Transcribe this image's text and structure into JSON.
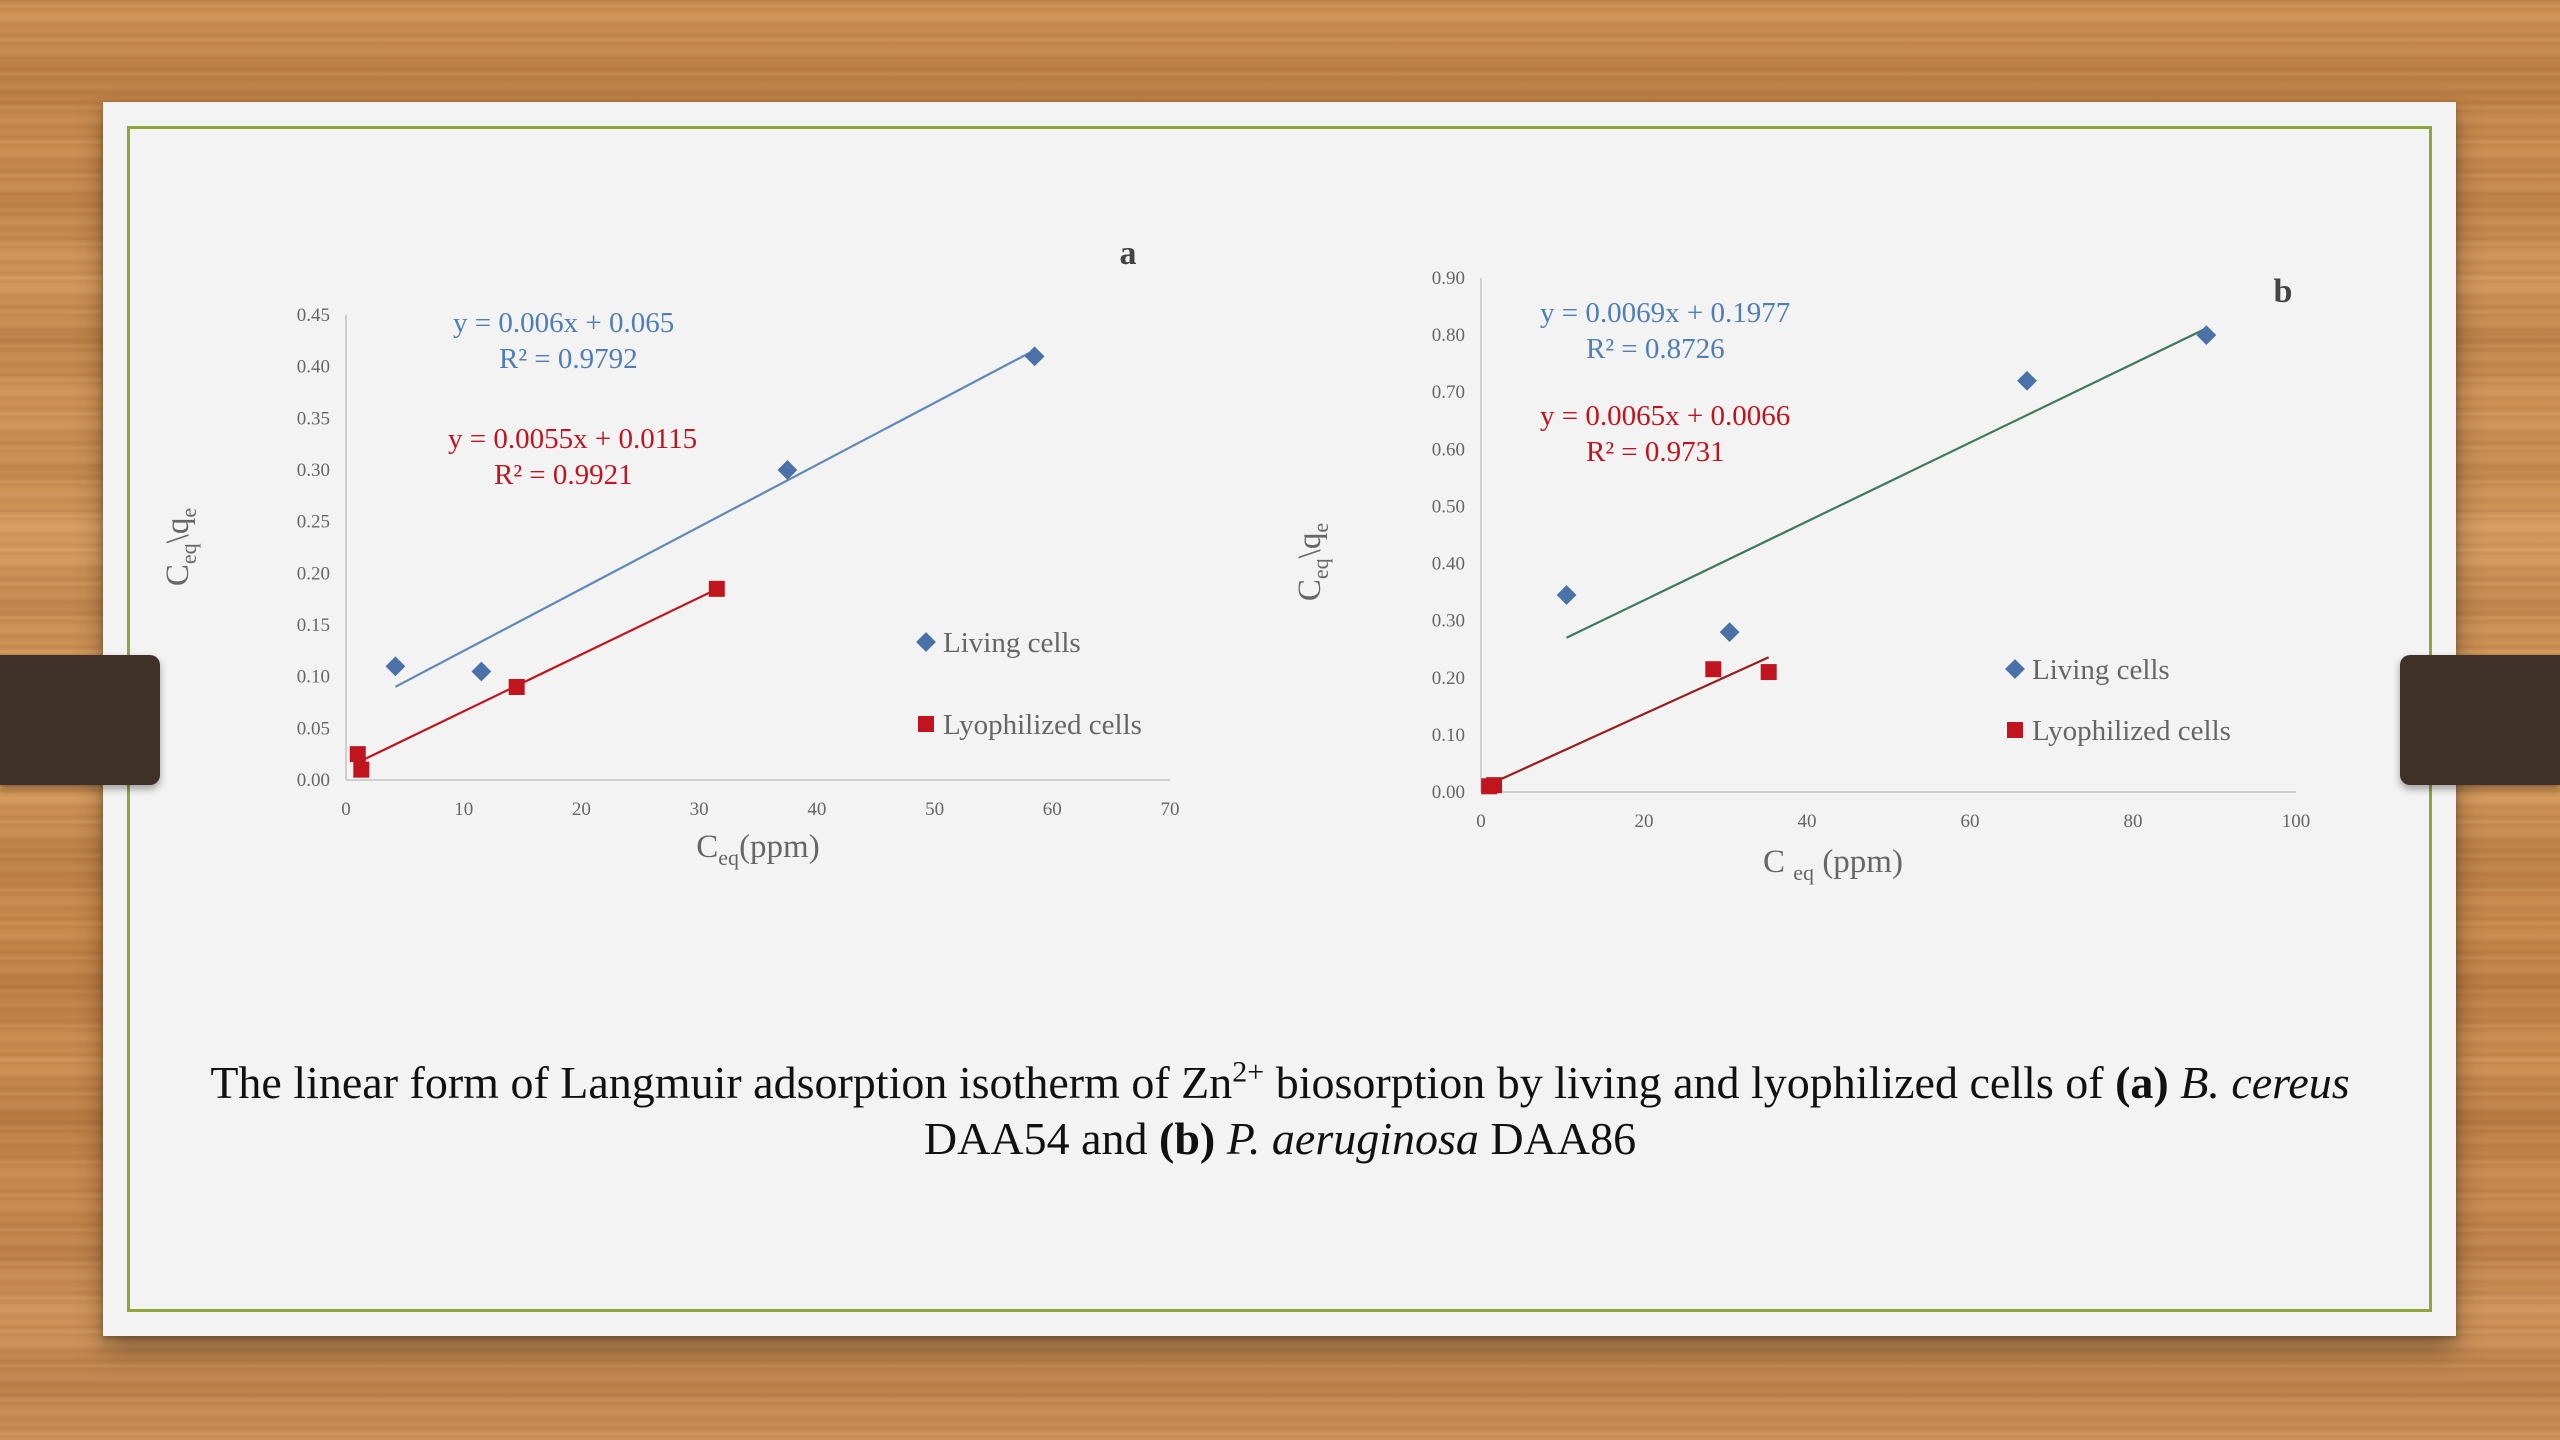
{
  "chart_data": [
    {
      "type": "scatter",
      "panel_label": "a",
      "xlabel": "C",
      "xlabel_sub": "eq",
      "xlabel_unit": "(ppm)",
      "ylabel": "C",
      "ylabel_sub": "eq",
      "ylabel_mid": "\\q",
      "ylabel_sub2": "e",
      "xlim": [
        0,
        70
      ],
      "ylim": [
        0,
        0.45
      ],
      "xticks": [
        "0",
        "10",
        "20",
        "30",
        "40",
        "50",
        "60",
        "70"
      ],
      "yticks": [
        "0.00",
        "0.05",
        "0.10",
        "0.15",
        "0.20",
        "0.25",
        "0.30",
        "0.35",
        "0.40",
        "0.45"
      ],
      "legend_position": "right",
      "series": [
        {
          "name": "Living cells",
          "marker": "diamond",
          "color": "#4a72a8",
          "line_color": "#5f88b8",
          "x": [
            4.2,
            11.5,
            37.5,
            58.5
          ],
          "y": [
            0.11,
            0.105,
            0.3,
            0.41
          ],
          "trendline": {
            "slope": 0.006,
            "intercept": 0.065,
            "x_range": [
              4.2,
              58.5
            ]
          },
          "equation": "y = 0.006x + 0.065",
          "r2": "R² = 0.9792"
        },
        {
          "name": "Lyophilized cells",
          "marker": "square",
          "color": "#c0151e",
          "line_color": "#c0151e",
          "x": [
            1.0,
            1.3,
            14.5,
            31.5
          ],
          "y": [
            0.025,
            0.01,
            0.09,
            0.185
          ],
          "trendline": {
            "slope": 0.0055,
            "intercept": 0.0115,
            "x_range": [
              1.0,
              31.5
            ]
          },
          "equation": "y = 0.0055x + 0.0115",
          "r2": "R² = 0.9921"
        }
      ]
    },
    {
      "type": "scatter",
      "panel_label": "b",
      "xlabel": "C ",
      "xlabel_sub": "eq",
      "xlabel_unit": " (ppm)",
      "ylabel": "C",
      "ylabel_sub": "eq",
      "ylabel_mid": "\\q",
      "ylabel_sub2": "e",
      "xlim": [
        0,
        100
      ],
      "ylim": [
        0,
        0.9
      ],
      "xticks": [
        "0",
        "20",
        "40",
        "60",
        "80",
        "100"
      ],
      "yticks": [
        "0.00",
        "0.10",
        "0.20",
        "0.30",
        "0.40",
        "0.50",
        "0.60",
        "0.70",
        "0.80",
        "0.90"
      ],
      "legend_position": "right",
      "series": [
        {
          "name": "Living cells",
          "marker": "diamond",
          "color": "#4a72a8",
          "line_color": "#3e7a5c",
          "x": [
            10.5,
            30.5,
            67,
            89
          ],
          "y": [
            0.345,
            0.28,
            0.72,
            0.8
          ],
          "trendline": {
            "slope": 0.0069,
            "intercept": 0.1977,
            "x_range": [
              10.5,
              89
            ]
          },
          "equation": "y = 0.0069x + 0.1977",
          "r2": "R² = 0.8726"
        },
        {
          "name": "Lyophilized cells",
          "marker": "square",
          "color": "#c0151e",
          "line_color": "#9b1c1c",
          "x": [
            1.0,
            1.6,
            28.5,
            35.3
          ],
          "y": [
            0.01,
            0.012,
            0.215,
            0.21
          ],
          "trendline": {
            "slope": 0.0065,
            "intercept": 0.0066,
            "x_range": [
              1.0,
              35.3
            ]
          },
          "equation": "y = 0.0065x + 0.0066",
          "r2": "R² = 0.9731"
        }
      ]
    }
  ],
  "caption": {
    "line1_pre": "The linear form of Langmuir adsorption isotherm of Zn",
    "line1_sup": "2+",
    "line1_mid": " biosorption by living and lyophilized cells of ",
    "line1_bold_a": "(a)",
    "line1_italic_a": " B. cereus",
    "line2_pre": "DAA54 and ",
    "line2_bold_b": "(b)",
    "line2_italic_b": " P. aeruginosa",
    "line2_post": " DAA86"
  }
}
